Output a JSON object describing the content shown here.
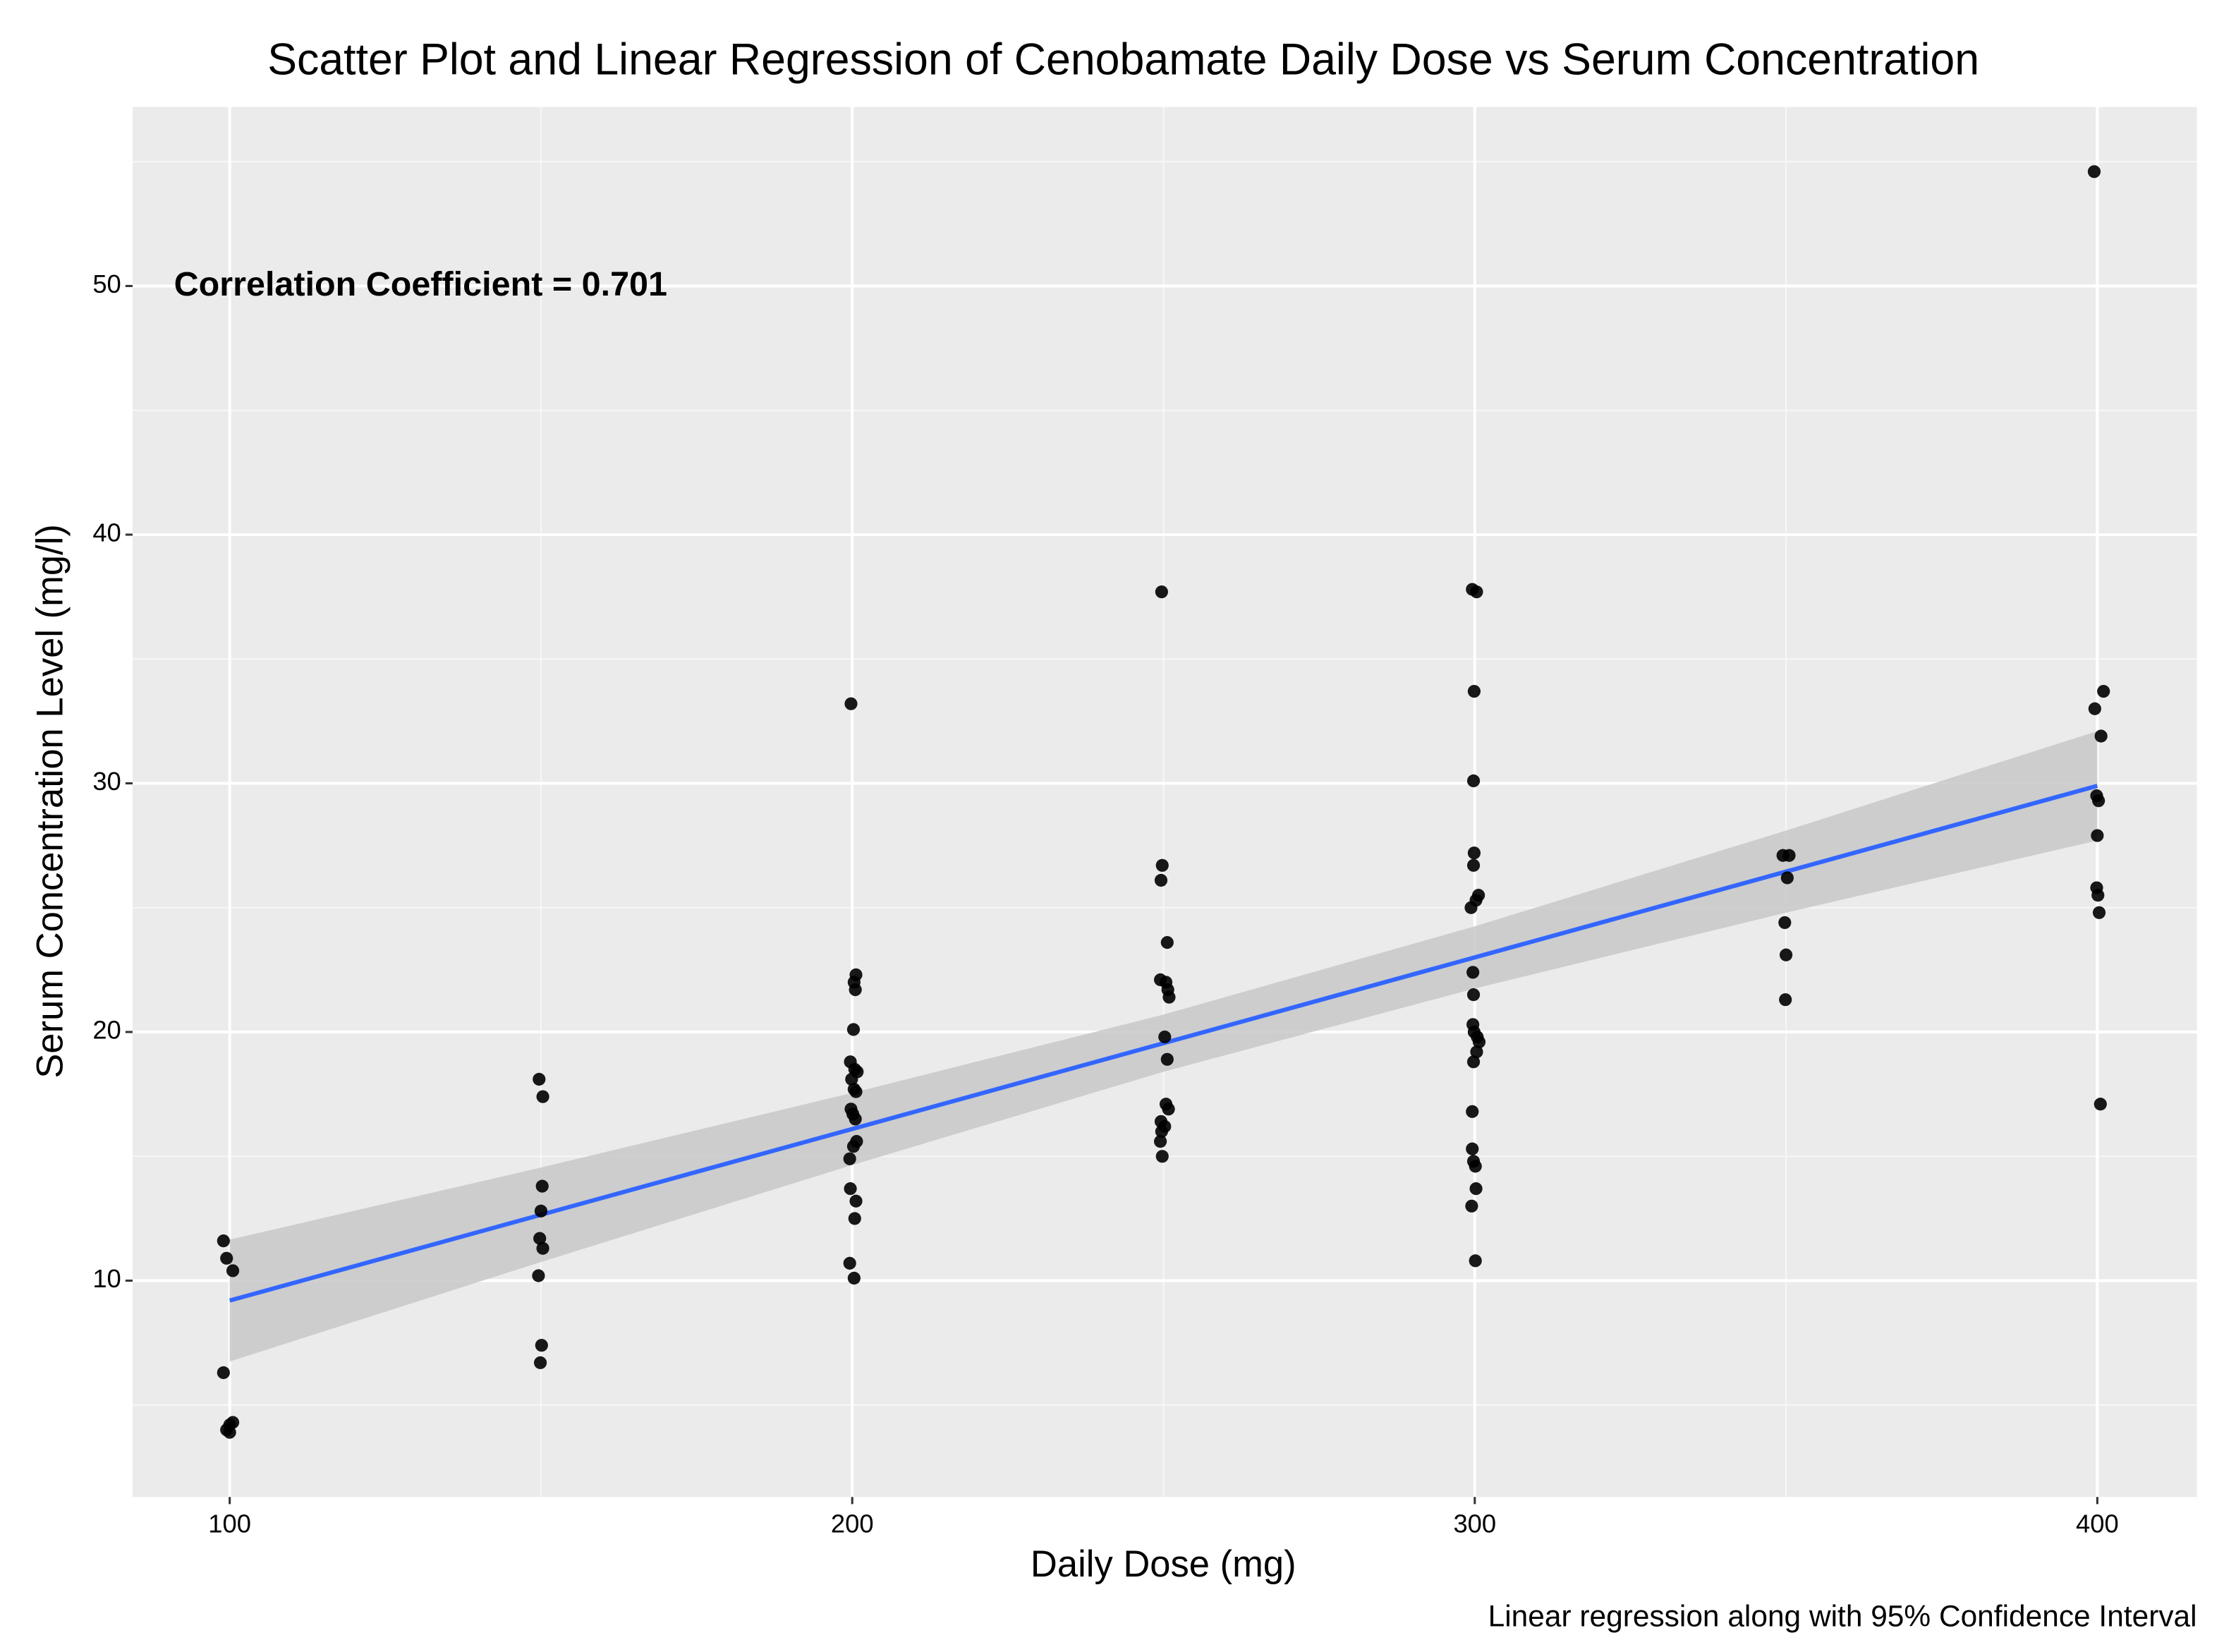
{
  "chart_data": {
    "type": "scatter",
    "title": "Scatter Plot and Linear Regression of Cenobamate Daily Dose vs Serum Concentration",
    "x_label": "Daily Dose (mg)",
    "y_label": "Serum Concentration Level (mg/l)",
    "annotation": "Correlation Coefficient = 0.701",
    "caption": "Linear regression along with 95% Confidence Interval",
    "xlim": [
      84.4,
      416
    ],
    "ylim": [
      1.3,
      57.2
    ],
    "xticks": [
      100,
      200,
      300,
      400
    ],
    "yticks": [
      10,
      20,
      30,
      40,
      50
    ],
    "x_minor_ticks": [
      150,
      250,
      350
    ],
    "y_minor_ticks": [
      5,
      15,
      25,
      35,
      45,
      55
    ],
    "grid": true,
    "points": {
      "color": "#000000",
      "x": [
        99,
        99.5,
        100.5,
        99,
        100,
        99.5,
        100,
        100.5,
        149.7,
        150.3,
        150.2,
        150,
        149.8,
        150.3,
        149.6,
        150.1,
        149.9,
        199.8,
        200.6,
        200.3,
        200.5,
        200.2,
        199.7,
        200.4,
        200.8,
        199.9,
        200.3,
        200.6,
        199.8,
        200.1,
        200.5,
        200.7,
        200.2,
        199.6,
        199.7,
        200.6,
        200.4,
        199.6,
        200.3,
        249.7,
        249.8,
        249.6,
        250.6,
        249.5,
        250.4,
        250.7,
        250.9,
        250.2,
        250.6,
        250.4,
        250.8,
        249.6,
        250.2,
        249.7,
        249.5,
        249.8,
        299.6,
        300.3,
        299.9,
        299.8,
        299.9,
        299.8,
        300.6,
        300.2,
        299.4,
        299.7,
        299.8,
        299.7,
        299.9,
        300.4,
        300.7,
        300.3,
        299.8,
        299.6,
        299.6,
        299.8,
        300.1,
        300.2,
        299.5,
        300.1,
        349.5,
        350.5,
        350.2,
        349.8,
        350,
        349.9,
        399.5,
        401,
        399.6,
        400.6,
        399.9,
        400.2,
        400,
        399.9,
        400.1,
        400.3,
        400.5
      ],
      "y": [
        11.6,
        10.9,
        10.4,
        6.3,
        4.2,
        4.0,
        3.9,
        4.3,
        18.1,
        17.4,
        13.8,
        12.8,
        11.7,
        11.3,
        10.2,
        7.4,
        6.7,
        33.2,
        22.3,
        22.0,
        21.7,
        20.1,
        18.8,
        18.5,
        18.4,
        18.1,
        17.7,
        17.6,
        16.9,
        16.7,
        16.5,
        15.6,
        15.4,
        14.9,
        13.7,
        13.2,
        12.5,
        10.7,
        10.1,
        37.7,
        26.7,
        26.1,
        23.6,
        22.1,
        22.0,
        21.7,
        21.4,
        19.8,
        18.9,
        17.1,
        16.9,
        16.4,
        16.2,
        16.0,
        15.6,
        15.0,
        37.8,
        37.7,
        33.7,
        30.1,
        27.2,
        26.7,
        25.5,
        25.3,
        25.0,
        22.4,
        21.5,
        20.3,
        20.0,
        19.8,
        19.6,
        19.2,
        18.8,
        16.8,
        15.3,
        14.8,
        14.6,
        13.7,
        13.0,
        10.8,
        27.1,
        27.1,
        26.2,
        24.4,
        23.1,
        21.3,
        54.6,
        33.7,
        33.0,
        31.9,
        29.5,
        29.3,
        27.9,
        25.8,
        25.5,
        24.8,
        17.1
      ]
    },
    "band": {
      "color": "#c8c8c8",
      "x": [
        100,
        150,
        200,
        250,
        300,
        350,
        400
      ],
      "upper": [
        11.65,
        14.55,
        17.55,
        20.7,
        24.25,
        28.1,
        32.1
      ],
      "lower": [
        6.75,
        10.75,
        14.65,
        18.4,
        21.75,
        24.8,
        27.7
      ]
    },
    "fit": {
      "color": "#3366ff",
      "x": [
        100,
        400
      ],
      "y": [
        9.2,
        29.9
      ]
    }
  }
}
